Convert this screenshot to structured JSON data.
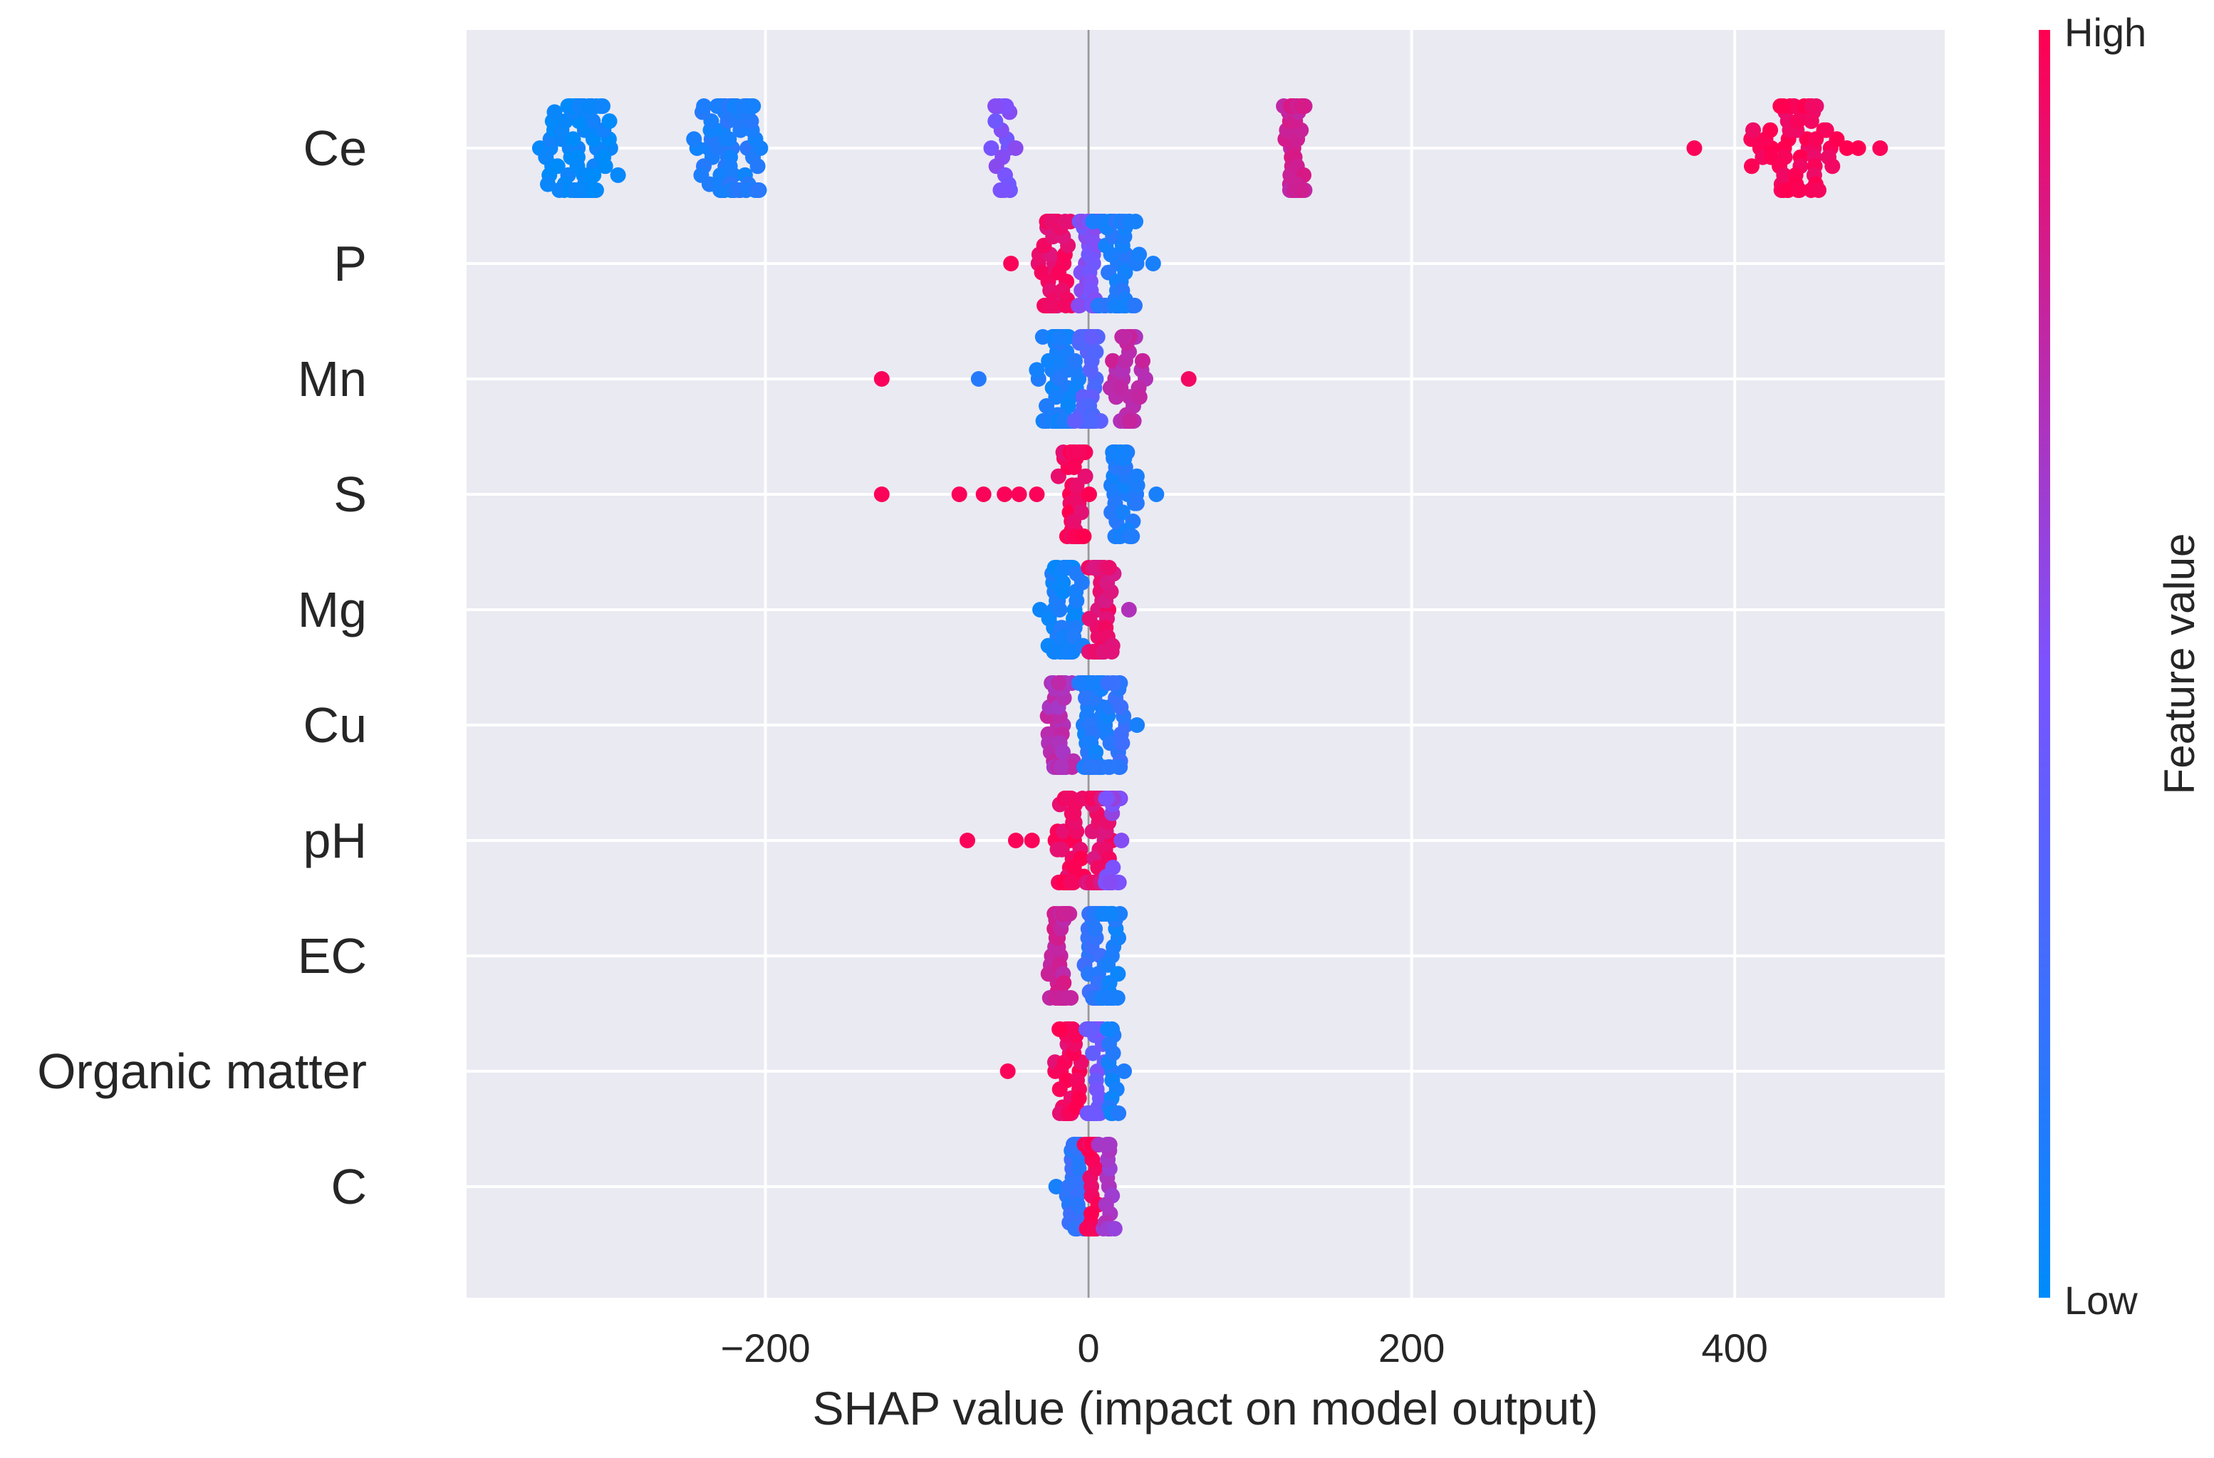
{
  "chart_data": {
    "type": "scatter",
    "subtype": "shap-beeswarm",
    "title": "",
    "xlabel": "SHAP value (impact on model output)",
    "ylabel": "",
    "xlim": [
      -385,
      530
    ],
    "xticks": [
      -200,
      0,
      200,
      400
    ],
    "xtick_labels": [
      "−200",
      "0",
      "200",
      "400"
    ],
    "grid": true,
    "features": [
      "Ce",
      "P",
      "Mn",
      "S",
      "Mg",
      "Cu",
      "pH",
      "EC",
      "Organic matter",
      "C"
    ],
    "colorbar": {
      "label": "Feature value",
      "high_label": "High",
      "low_label": "Low",
      "low_color": "#008bfb",
      "mid_color": "#7c52ff",
      "high_color": "#ff0051"
    },
    "series": [
      {
        "name": "Ce",
        "clusters": [
          {
            "center": -315,
            "spread": 28,
            "count": 95,
            "value": 0.02
          },
          {
            "center": -220,
            "spread": 26,
            "count": 85,
            "value": 0.12
          },
          {
            "center": -52,
            "spread": 10,
            "count": 22,
            "value": 0.5
          },
          {
            "center": 128,
            "spread": 10,
            "count": 42,
            "value": 0.8
          },
          {
            "center": 440,
            "spread": 42,
            "count": 62,
            "value": 0.98
          }
        ],
        "outliers": [
          {
            "x": 375,
            "value": 0.98
          },
          {
            "x": 490,
            "value": 0.98
          }
        ]
      },
      {
        "name": "P",
        "clusters": [
          {
            "center": -22,
            "spread": 16,
            "count": 45,
            "value": 0.92
          },
          {
            "center": 2,
            "spread": 12,
            "count": 45,
            "value": 0.5
          },
          {
            "center": 18,
            "spread": 18,
            "count": 55,
            "value": 0.12
          }
        ],
        "outliers": [
          {
            "x": -48,
            "value": 0.98
          },
          {
            "x": 40,
            "value": 0.1
          }
        ]
      },
      {
        "name": "Mn",
        "clusters": [
          {
            "center": -18,
            "spread": 16,
            "count": 70,
            "value": 0.1
          },
          {
            "center": 0,
            "spread": 10,
            "count": 45,
            "value": 0.35
          },
          {
            "center": 25,
            "spread": 15,
            "count": 40,
            "value": 0.75
          }
        ],
        "outliers": [
          {
            "x": -128,
            "value": 0.98
          },
          {
            "x": -68,
            "value": 0.15
          },
          {
            "x": 62,
            "value": 0.95
          }
        ]
      },
      {
        "name": "S",
        "clusters": [
          {
            "center": -8,
            "spread": 12,
            "count": 55,
            "value": 0.95
          },
          {
            "center": 20,
            "spread": 14,
            "count": 45,
            "value": 0.12
          }
        ],
        "outliers": [
          {
            "x": -128,
            "value": 0.98
          },
          {
            "x": -80,
            "value": 0.98
          },
          {
            "x": -65,
            "value": 0.98
          },
          {
            "x": -52,
            "value": 0.98
          },
          {
            "x": -43,
            "value": 0.98
          },
          {
            "x": -32,
            "value": 0.98
          },
          {
            "x": 42,
            "value": 0.1
          }
        ]
      },
      {
        "name": "Mg",
        "clusters": [
          {
            "center": -15,
            "spread": 14,
            "count": 60,
            "value": 0.08
          },
          {
            "center": 8,
            "spread": 12,
            "count": 45,
            "value": 0.9
          }
        ],
        "outliers": [
          {
            "x": 25,
            "value": 0.7
          },
          {
            "x": -30,
            "value": 0.05
          }
        ]
      },
      {
        "name": "Cu",
        "clusters": [
          {
            "center": -18,
            "spread": 12,
            "count": 40,
            "value": 0.72
          },
          {
            "center": 4,
            "spread": 12,
            "count": 55,
            "value": 0.12
          },
          {
            "center": 18,
            "spread": 10,
            "count": 20,
            "value": 0.2
          }
        ],
        "outliers": [
          {
            "x": 30,
            "value": 0.1
          }
        ]
      },
      {
        "name": "pH",
        "clusters": [
          {
            "center": -12,
            "spread": 14,
            "count": 50,
            "value": 0.96
          },
          {
            "center": 6,
            "spread": 12,
            "count": 55,
            "value": 0.9
          },
          {
            "center": 14,
            "spread": 10,
            "count": 25,
            "value": 0.55
          }
        ],
        "outliers": [
          {
            "x": -75,
            "value": 0.98
          },
          {
            "x": -45,
            "value": 0.98
          },
          {
            "x": -35,
            "value": 0.98
          }
        ]
      },
      {
        "name": "EC",
        "clusters": [
          {
            "center": -18,
            "spread": 10,
            "count": 40,
            "value": 0.8
          },
          {
            "center": 4,
            "spread": 10,
            "count": 55,
            "value": 0.2
          },
          {
            "center": 14,
            "spread": 8,
            "count": 25,
            "value": 0.1
          }
        ],
        "outliers": []
      },
      {
        "name": "Organic matter",
        "clusters": [
          {
            "center": -12,
            "spread": 10,
            "count": 40,
            "value": 0.95
          },
          {
            "center": 4,
            "spread": 8,
            "count": 55,
            "value": 0.45
          },
          {
            "center": 14,
            "spread": 6,
            "count": 15,
            "value": 0.1
          }
        ],
        "outliers": [
          {
            "x": -50,
            "value": 0.98
          },
          {
            "x": 22,
            "value": 0.12
          }
        ]
      },
      {
        "name": "C",
        "clusters": [
          {
            "center": -8,
            "spread": 8,
            "count": 30,
            "value": 0.2
          },
          {
            "center": 2,
            "spread": 6,
            "count": 50,
            "value": 0.95
          },
          {
            "center": 12,
            "spread": 6,
            "count": 20,
            "value": 0.65
          }
        ],
        "outliers": [
          {
            "x": -20,
            "value": 0.1
          }
        ]
      }
    ]
  }
}
